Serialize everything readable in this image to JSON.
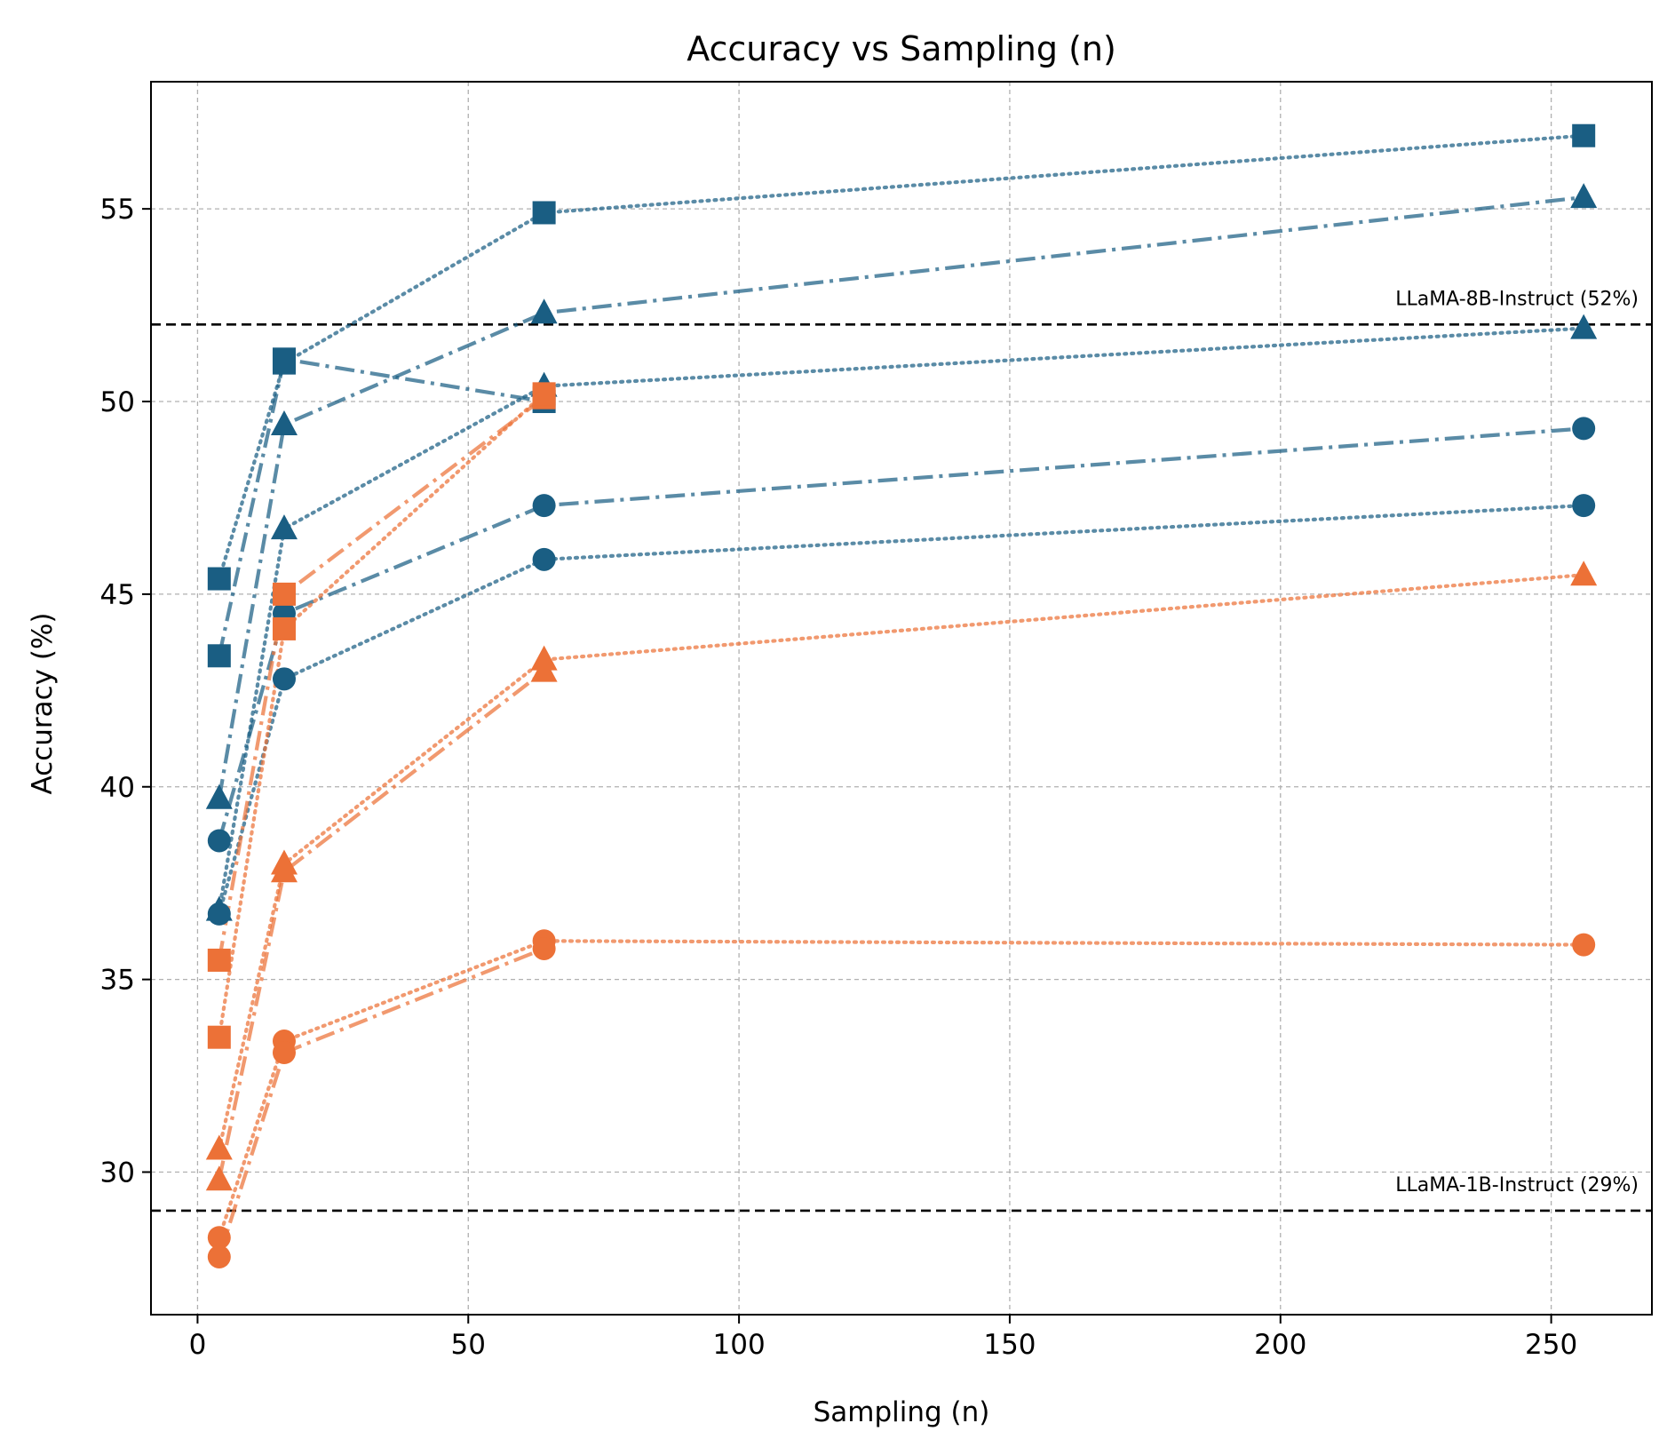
{
  "chart_data": {
    "type": "line",
    "title": "Accuracy vs Sampling (n)",
    "xlabel": "Sampling (n)",
    "ylabel": "Accuracy (%)",
    "xlim": [
      -8.6,
      268.6
    ],
    "ylim": [
      26.3,
      58.3
    ],
    "xticks": [
      0,
      50,
      100,
      150,
      200,
      250
    ],
    "yticks": [
      30,
      35,
      40,
      45,
      50,
      55
    ],
    "grid": true,
    "legend": "none",
    "colors": {
      "blue": "#1a5e83",
      "orange": "#ec7137",
      "ref_line": "#000000",
      "grid": "#b0b0b0"
    },
    "reference_lines": [
      {
        "label": "LLaMA-8B-Instruct (52%)",
        "y": 52
      },
      {
        "label": "LLaMA-1B-Instruct (29%)",
        "y": 29
      }
    ],
    "series": [
      {
        "color": "blue",
        "marker": "square",
        "style": "dotted",
        "x": [
          4,
          16,
          64,
          256
        ],
        "y": [
          45.4,
          51.0,
          54.9,
          56.9
        ]
      },
      {
        "color": "blue",
        "marker": "square",
        "style": "dashdot",
        "x": [
          4,
          16,
          64
        ],
        "y": [
          43.4,
          51.1,
          50.0
        ]
      },
      {
        "color": "blue",
        "marker": "triangle",
        "style": "dashdot",
        "x": [
          4,
          16,
          64,
          256
        ],
        "y": [
          39.7,
          49.4,
          52.3,
          55.3
        ]
      },
      {
        "color": "blue",
        "marker": "triangle",
        "style": "dotted",
        "x": [
          4,
          16,
          64,
          256
        ],
        "y": [
          36.8,
          46.7,
          50.4,
          51.9
        ]
      },
      {
        "color": "blue",
        "marker": "circle",
        "style": "dashdot",
        "x": [
          4,
          16,
          64,
          256
        ],
        "y": [
          38.6,
          44.5,
          47.3,
          49.3
        ]
      },
      {
        "color": "blue",
        "marker": "circle",
        "style": "dotted",
        "x": [
          4,
          16,
          64,
          256
        ],
        "y": [
          36.7,
          42.8,
          45.9,
          47.3
        ]
      },
      {
        "color": "orange",
        "marker": "square",
        "style": "dashdot",
        "x": [
          4,
          16,
          64
        ],
        "y": [
          35.5,
          45.0,
          50.1
        ]
      },
      {
        "color": "orange",
        "marker": "square",
        "style": "dotted",
        "x": [
          4,
          16,
          64
        ],
        "y": [
          33.5,
          44.1,
          50.2
        ]
      },
      {
        "color": "orange",
        "marker": "triangle",
        "style": "dotted",
        "x": [
          4,
          16,
          64,
          256
        ],
        "y": [
          30.6,
          38.0,
          43.3,
          45.5
        ]
      },
      {
        "color": "orange",
        "marker": "triangle",
        "style": "dashdot",
        "x": [
          4,
          16,
          64
        ],
        "y": [
          29.8,
          37.8,
          43.0
        ]
      },
      {
        "color": "orange",
        "marker": "circle",
        "style": "dotted",
        "x": [
          4,
          16,
          64,
          256
        ],
        "y": [
          28.3,
          33.4,
          36.0,
          35.9
        ]
      },
      {
        "color": "orange",
        "marker": "circle",
        "style": "dashdot",
        "x": [
          4,
          16,
          64
        ],
        "y": [
          27.8,
          33.1,
          35.8
        ]
      }
    ]
  }
}
